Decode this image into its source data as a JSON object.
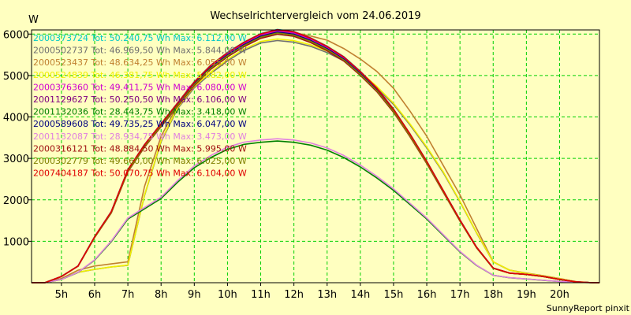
{
  "chart_data": {
    "type": "line",
    "title": "Wechselrichtervergleich vom 24.06.2019",
    "ylabel": "W",
    "xlabel": "",
    "footer": "SunnyReport pinxit",
    "xlim": [
      4.1,
      21.2
    ],
    "ylim": [
      0,
      6100
    ],
    "grid": true,
    "legend_placement": "top-left",
    "x_ticks": [
      5,
      6,
      7,
      8,
      9,
      10,
      11,
      12,
      13,
      14,
      15,
      16,
      17,
      18,
      19,
      20
    ],
    "x_tick_labels": [
      "5h",
      "6h",
      "7h",
      "8h",
      "9h",
      "10h",
      "11h",
      "12h",
      "13h",
      "14h",
      "15h",
      "16h",
      "17h",
      "18h",
      "19h",
      "20h"
    ],
    "y_ticks": [
      1000,
      2000,
      3000,
      4000,
      5000,
      6000
    ],
    "y_tick_labels": [
      "1000",
      "2000",
      "3000",
      "4000",
      "5000",
      "6000"
    ],
    "series": [
      {
        "name": "2000373724 Tot: 50.240,75 Wh Max: 6.112,00 W",
        "color": "#00c8c8",
        "profile": "full",
        "max": 6112,
        "values": null
      },
      {
        "name": "2000502737 Tot: 46.969,50 Wh Max: 5.844,00 W",
        "color": "#707070",
        "profile": "late",
        "max": 5844,
        "values": null
      },
      {
        "name": "2000523437 Tot: 48.634,25 Wh Max: 6.055,00 W",
        "color": "#c08030",
        "profile": "west",
        "max": 6055,
        "values": null
      },
      {
        "name": "2000524839 Tot: 46.381,75 Wh Max: 5.882,00 W",
        "color": "#f0f000",
        "profile": "late",
        "max": 5882,
        "values": null
      },
      {
        "name": "2000376360 Tot: 49.411,75 Wh Max: 6.080,00 W",
        "color": "#d000d0",
        "profile": "full",
        "max": 6080,
        "values": null
      },
      {
        "name": "2001129627 Tot: 50.250,50 Wh Max: 6.106,00 W",
        "color": "#800080",
        "profile": "full",
        "max": 6106,
        "values": null
      },
      {
        "name": "2001132036 Tot: 28.443,75 Wh Max: 3.418,00 W",
        "color": "#008000",
        "profile": "half",
        "max": 3418,
        "values": null
      },
      {
        "name": "2000589608 Tot: 49.735,25 Wh Max: 6.047,00 W",
        "color": "#000080",
        "profile": "full",
        "max": 6047,
        "values": null
      },
      {
        "name": "2001132087 Tot: 28.934,75 Wh Max: 3.473,00 W",
        "color": "#e080e0",
        "profile": "half",
        "max": 3473,
        "values": null
      },
      {
        "name": "2000316121 Tot: 48.884,50 Wh Max: 5.995,00 W",
        "color": "#a01010",
        "profile": "full",
        "max": 5995,
        "values": null
      },
      {
        "name": "2000302779 Tot: 49.660,00 Wh Max: 6.025,00 W",
        "color": "#808000",
        "profile": "full",
        "max": 6025,
        "values": null
      },
      {
        "name": "2007404187 Tot: 50.070,75 Wh Max: 6.104,00 W",
        "color": "#e00000",
        "profile": "full",
        "max": 6104,
        "values": null
      }
    ],
    "profiles": {
      "x": [
        4.1,
        4.5,
        5.0,
        5.5,
        6.0,
        6.5,
        7.0,
        7.5,
        8.0,
        8.5,
        9.0,
        9.5,
        10.0,
        10.5,
        11.0,
        11.5,
        12.0,
        12.5,
        13.0,
        13.5,
        14.0,
        14.5,
        15.0,
        15.5,
        16.0,
        16.5,
        17.0,
        17.5,
        18.0,
        18.5,
        19.0,
        19.5,
        20.0,
        20.5,
        21.0,
        21.2
      ],
      "full": [
        0,
        0,
        150,
        400,
        1100,
        1700,
        2700,
        3300,
        3800,
        4300,
        4800,
        5200,
        5500,
        5750,
        5950,
        6050,
        6000,
        5850,
        5650,
        5400,
        5050,
        4650,
        4150,
        3550,
        2900,
        2200,
        1500,
        850,
        350,
        230,
        200,
        150,
        80,
        20,
        0,
        0
      ],
      "late": [
        0,
        0,
        80,
        250,
        320,
        380,
        420,
        2100,
        3400,
        4200,
        4700,
        5050,
        5350,
        5600,
        5780,
        5840,
        5800,
        5700,
        5550,
        5350,
        5050,
        4700,
        4300,
        3800,
        3250,
        2650,
        1950,
        1200,
        500,
        300,
        220,
        160,
        90,
        25,
        0,
        0
      ],
      "west": [
        0,
        0,
        100,
        300,
        400,
        450,
        500,
        2300,
        3500,
        4250,
        4750,
        5150,
        5450,
        5700,
        5900,
        6000,
        5980,
        5900,
        5800,
        5600,
        5350,
        5050,
        4650,
        4100,
        3500,
        2800,
        2100,
        1300,
        500,
        300,
        230,
        170,
        100,
        25,
        0,
        0
      ],
      "half": [
        0,
        0,
        80,
        250,
        550,
        1000,
        1550,
        1800,
        2050,
        2450,
        2800,
        3050,
        3250,
        3370,
        3420,
        3450,
        3420,
        3350,
        3230,
        3050,
        2820,
        2550,
        2250,
        1900,
        1550,
        1150,
        750,
        420,
        180,
        120,
        90,
        60,
        30,
        10,
        0,
        0
      ]
    }
  }
}
